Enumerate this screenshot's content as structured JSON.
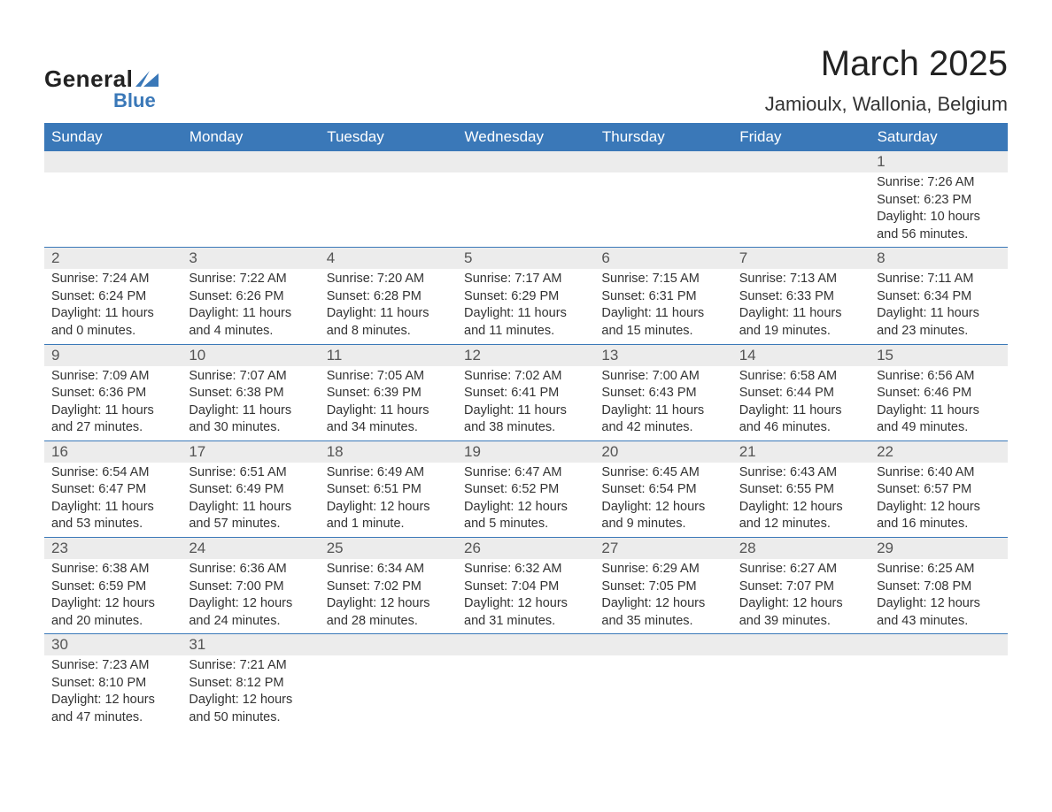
{
  "logo": {
    "general": "General",
    "blue": "Blue",
    "sail_color": "#3a78b8"
  },
  "title": "March 2025",
  "location": "Jamioulx, Wallonia, Belgium",
  "colors": {
    "header_bg": "#3a78b8",
    "header_text": "#ffffff",
    "daynum_bg": "#ececec",
    "border": "#3a78b8",
    "text": "#333333"
  },
  "day_headers": [
    "Sunday",
    "Monday",
    "Tuesday",
    "Wednesday",
    "Thursday",
    "Friday",
    "Saturday"
  ],
  "weeks": [
    [
      null,
      null,
      null,
      null,
      null,
      null,
      {
        "n": "1",
        "sr": "7:26 AM",
        "ss": "6:23 PM",
        "dl": "10 hours and 56 minutes."
      }
    ],
    [
      {
        "n": "2",
        "sr": "7:24 AM",
        "ss": "6:24 PM",
        "dl": "11 hours and 0 minutes."
      },
      {
        "n": "3",
        "sr": "7:22 AM",
        "ss": "6:26 PM",
        "dl": "11 hours and 4 minutes."
      },
      {
        "n": "4",
        "sr": "7:20 AM",
        "ss": "6:28 PM",
        "dl": "11 hours and 8 minutes."
      },
      {
        "n": "5",
        "sr": "7:17 AM",
        "ss": "6:29 PM",
        "dl": "11 hours and 11 minutes."
      },
      {
        "n": "6",
        "sr": "7:15 AM",
        "ss": "6:31 PM",
        "dl": "11 hours and 15 minutes."
      },
      {
        "n": "7",
        "sr": "7:13 AM",
        "ss": "6:33 PM",
        "dl": "11 hours and 19 minutes."
      },
      {
        "n": "8",
        "sr": "7:11 AM",
        "ss": "6:34 PM",
        "dl": "11 hours and 23 minutes."
      }
    ],
    [
      {
        "n": "9",
        "sr": "7:09 AM",
        "ss": "6:36 PM",
        "dl": "11 hours and 27 minutes."
      },
      {
        "n": "10",
        "sr": "7:07 AM",
        "ss": "6:38 PM",
        "dl": "11 hours and 30 minutes."
      },
      {
        "n": "11",
        "sr": "7:05 AM",
        "ss": "6:39 PM",
        "dl": "11 hours and 34 minutes."
      },
      {
        "n": "12",
        "sr": "7:02 AM",
        "ss": "6:41 PM",
        "dl": "11 hours and 38 minutes."
      },
      {
        "n": "13",
        "sr": "7:00 AM",
        "ss": "6:43 PM",
        "dl": "11 hours and 42 minutes."
      },
      {
        "n": "14",
        "sr": "6:58 AM",
        "ss": "6:44 PM",
        "dl": "11 hours and 46 minutes."
      },
      {
        "n": "15",
        "sr": "6:56 AM",
        "ss": "6:46 PM",
        "dl": "11 hours and 49 minutes."
      }
    ],
    [
      {
        "n": "16",
        "sr": "6:54 AM",
        "ss": "6:47 PM",
        "dl": "11 hours and 53 minutes."
      },
      {
        "n": "17",
        "sr": "6:51 AM",
        "ss": "6:49 PM",
        "dl": "11 hours and 57 minutes."
      },
      {
        "n": "18",
        "sr": "6:49 AM",
        "ss": "6:51 PM",
        "dl": "12 hours and 1 minute."
      },
      {
        "n": "19",
        "sr": "6:47 AM",
        "ss": "6:52 PM",
        "dl": "12 hours and 5 minutes."
      },
      {
        "n": "20",
        "sr": "6:45 AM",
        "ss": "6:54 PM",
        "dl": "12 hours and 9 minutes."
      },
      {
        "n": "21",
        "sr": "6:43 AM",
        "ss": "6:55 PM",
        "dl": "12 hours and 12 minutes."
      },
      {
        "n": "22",
        "sr": "6:40 AM",
        "ss": "6:57 PM",
        "dl": "12 hours and 16 minutes."
      }
    ],
    [
      {
        "n": "23",
        "sr": "6:38 AM",
        "ss": "6:59 PM",
        "dl": "12 hours and 20 minutes."
      },
      {
        "n": "24",
        "sr": "6:36 AM",
        "ss": "7:00 PM",
        "dl": "12 hours and 24 minutes."
      },
      {
        "n": "25",
        "sr": "6:34 AM",
        "ss": "7:02 PM",
        "dl": "12 hours and 28 minutes."
      },
      {
        "n": "26",
        "sr": "6:32 AM",
        "ss": "7:04 PM",
        "dl": "12 hours and 31 minutes."
      },
      {
        "n": "27",
        "sr": "6:29 AM",
        "ss": "7:05 PM",
        "dl": "12 hours and 35 minutes."
      },
      {
        "n": "28",
        "sr": "6:27 AM",
        "ss": "7:07 PM",
        "dl": "12 hours and 39 minutes."
      },
      {
        "n": "29",
        "sr": "6:25 AM",
        "ss": "7:08 PM",
        "dl": "12 hours and 43 minutes."
      }
    ],
    [
      {
        "n": "30",
        "sr": "7:23 AM",
        "ss": "8:10 PM",
        "dl": "12 hours and 47 minutes."
      },
      {
        "n": "31",
        "sr": "7:21 AM",
        "ss": "8:12 PM",
        "dl": "12 hours and 50 minutes."
      },
      null,
      null,
      null,
      null,
      null
    ]
  ],
  "labels": {
    "sunrise": "Sunrise: ",
    "sunset": "Sunset: ",
    "daylight": "Daylight: "
  }
}
